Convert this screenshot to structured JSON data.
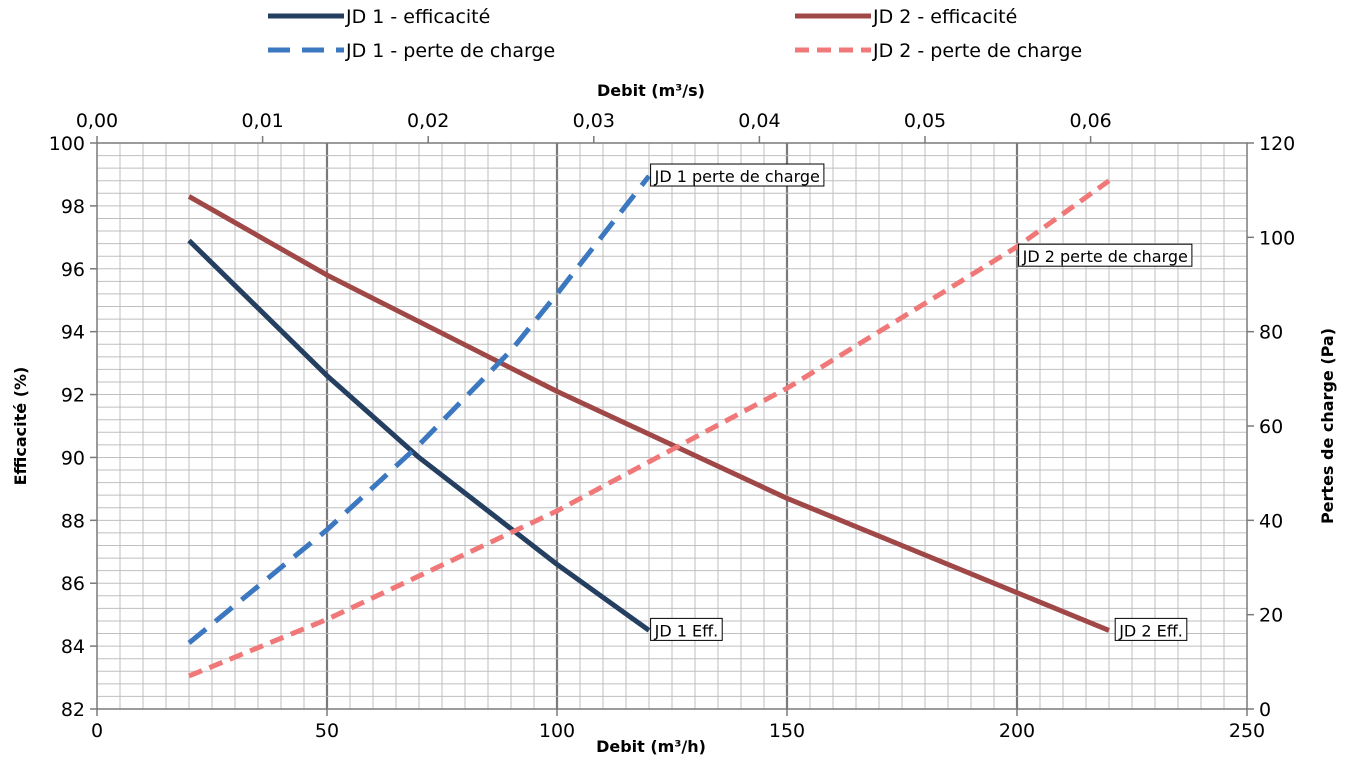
{
  "chart_data": {
    "type": "line",
    "x_bottom": {
      "label": "Debit (m³/h)",
      "range": [
        0,
        250
      ],
      "ticks": [
        0,
        50,
        100,
        150,
        200,
        250
      ],
      "tick_labels": [
        "0",
        "50",
        "100",
        "150",
        "200",
        "250"
      ]
    },
    "x_top": {
      "label": "Debit (m³/s)",
      "tick_labels": [
        "0,00",
        "0,01",
        "0,02",
        "0,03",
        "0,04",
        "0,05",
        "0,06"
      ],
      "ticks": [
        0,
        0.01,
        0.02,
        0.03,
        0.04,
        0.05,
        0.06
      ]
    },
    "y_left": {
      "label": "Efficacité (%)",
      "range": [
        82,
        100
      ],
      "ticks": [
        82,
        84,
        86,
        88,
        90,
        92,
        94,
        96,
        98,
        100
      ],
      "tick_labels": [
        "82",
        "84",
        "86",
        "88",
        "90",
        "92",
        "94",
        "96",
        "98",
        "100"
      ]
    },
    "y_right": {
      "label": "Pertes de charge (Pa)",
      "range": [
        0,
        120
      ],
      "ticks": [
        0,
        20,
        40,
        60,
        80,
        100,
        120
      ],
      "tick_labels": [
        "0",
        "20",
        "40",
        "60",
        "80",
        "100",
        "120"
      ]
    },
    "grid": true,
    "legend_position": "top",
    "series": [
      {
        "name": "JD 1 - efficacité",
        "axis": "left",
        "style": "solid",
        "color": "#243f60",
        "x": [
          20,
          50,
          70,
          100,
          120
        ],
        "y": [
          96.9,
          92.6,
          90.0,
          86.6,
          84.5
        ]
      },
      {
        "name": "JD 2 - efficacité",
        "axis": "left",
        "style": "solid",
        "color": "#a04848",
        "x": [
          20,
          50,
          100,
          150,
          200,
          220
        ],
        "y": [
          98.3,
          95.8,
          92.1,
          88.7,
          85.7,
          84.5
        ]
      },
      {
        "name": "JD 1 - perte de charge",
        "axis": "right",
        "style": "dashed",
        "color": "#3c78c0",
        "x": [
          20,
          50,
          70,
          90,
          100,
          120
        ],
        "y": [
          14,
          38,
          56,
          76,
          88,
          113
        ]
      },
      {
        "name": "JD 2 - perte de charge",
        "axis": "right",
        "style": "dashed",
        "color": "#f07878",
        "x": [
          20,
          50,
          100,
          150,
          200,
          220
        ],
        "y": [
          7,
          19,
          42,
          68,
          98,
          112
        ]
      }
    ],
    "annotations": [
      {
        "text": "JD 1 perte de charge",
        "x": 121,
        "y": 113,
        "axis": "right"
      },
      {
        "text": "JD 2 perte de charge",
        "x": 201,
        "y": 96,
        "axis": "right"
      },
      {
        "text": "JD 1 Eff.",
        "x": 121,
        "y": 84.5,
        "axis": "left"
      },
      {
        "text": "JD 2 Eff.",
        "x": 222,
        "y": 84.5,
        "axis": "left"
      }
    ]
  }
}
